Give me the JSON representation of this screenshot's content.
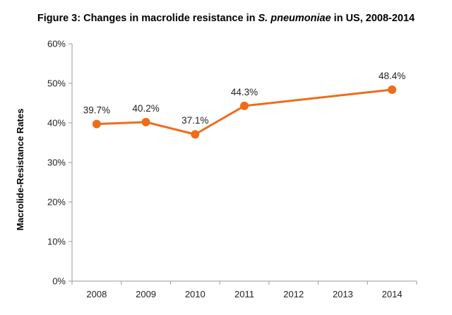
{
  "chart_data": {
    "type": "line",
    "title": {
      "prefix": "Figure 3: Changes in macrolide resistance in ",
      "italic": "S. pneumoniae",
      "suffix": " in US, 2008-2014"
    },
    "xlabel": "",
    "ylabel": "Macrolide-Resistance Rates",
    "x_ticks": [
      "2008",
      "2009",
      "2010",
      "2011",
      "2012",
      "2013",
      "2014"
    ],
    "y_ticks": [
      "0%",
      "10%",
      "20%",
      "30%",
      "40%",
      "50%",
      "60%"
    ],
    "ylim": [
      0,
      60
    ],
    "grid": false,
    "legend": "none",
    "series": [
      {
        "points": [
          {
            "x": "2008",
            "y": 39.7,
            "label": "39.7%"
          },
          {
            "x": "2009",
            "y": 40.2,
            "label": "40.2%"
          },
          {
            "x": "2010",
            "y": 37.1,
            "label": "37.1%"
          },
          {
            "x": "2011",
            "y": 44.3,
            "label": "44.3%"
          },
          {
            "x": "2014",
            "y": 48.4,
            "label": "48.4%"
          }
        ],
        "color": "#ED6D1B"
      }
    ],
    "colors": {
      "axis": "#9A9A9A",
      "text": "#222222"
    }
  }
}
